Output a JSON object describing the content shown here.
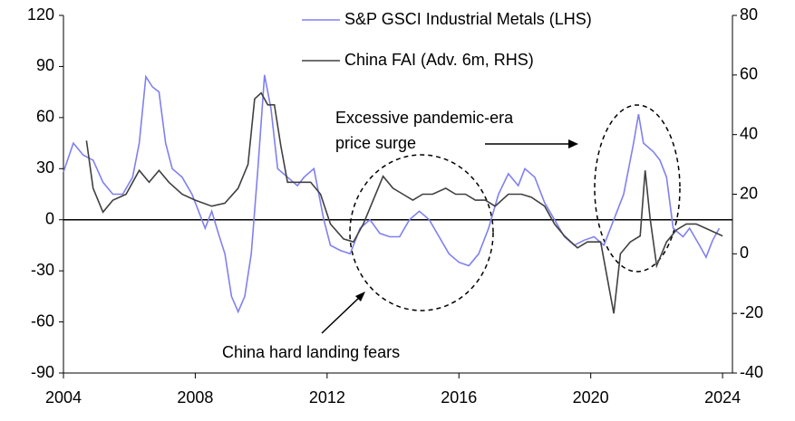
{
  "chart_data": {
    "type": "line",
    "xlim": [
      2004,
      2024.3
    ],
    "xticks": [
      2004,
      2008,
      2012,
      2016,
      2020,
      2024
    ],
    "ylim": [
      -90,
      120
    ],
    "yticks": [
      -90,
      -60,
      -30,
      0,
      30,
      60,
      90,
      120
    ],
    "y2lim": [
      -40,
      80
    ],
    "y2ticks": [
      -40,
      -20,
      0,
      20,
      40,
      60,
      80
    ],
    "zero_line": true,
    "series": [
      {
        "name": "S&P GSCI Industrial Metals (LHS)",
        "color": "#8080f0",
        "x": [
          2004.0,
          2004.3,
          2004.6,
          2004.9,
          2005.2,
          2005.5,
          2005.8,
          2006.1,
          2006.3,
          2006.5,
          2006.7,
          2006.9,
          2007.1,
          2007.3,
          2007.6,
          2007.9,
          2008.1,
          2008.3,
          2008.5,
          2008.7,
          2008.9,
          2009.1,
          2009.3,
          2009.5,
          2009.7,
          2009.9,
          2010.1,
          2010.3,
          2010.5,
          2010.8,
          2011.1,
          2011.3,
          2011.6,
          2011.9,
          2012.1,
          2012.4,
          2012.7,
          2013.0,
          2013.3,
          2013.6,
          2013.9,
          2014.2,
          2014.5,
          2014.8,
          2015.1,
          2015.4,
          2015.7,
          2016.0,
          2016.3,
          2016.6,
          2016.9,
          2017.2,
          2017.5,
          2017.8,
          2018.0,
          2018.3,
          2018.6,
          2018.9,
          2019.2,
          2019.5,
          2019.8,
          2020.1,
          2020.4,
          2020.7,
          2021.0,
          2021.3,
          2021.45,
          2021.6,
          2021.9,
          2022.1,
          2022.3,
          2022.5,
          2022.8,
          2023.0,
          2023.3,
          2023.5,
          2023.7,
          2023.9
        ],
        "values": [
          28,
          45,
          38,
          35,
          22,
          15,
          15,
          25,
          45,
          84,
          78,
          75,
          45,
          30,
          25,
          15,
          5,
          -5,
          5,
          -8,
          -20,
          -45,
          -54,
          -45,
          -20,
          30,
          85,
          65,
          30,
          25,
          20,
          25,
          30,
          0,
          -15,
          -18,
          -20,
          -5,
          0,
          -8,
          -10,
          -10,
          0,
          5,
          0,
          -10,
          -20,
          -25,
          -27,
          -20,
          -5,
          15,
          27,
          20,
          30,
          25,
          10,
          0,
          -10,
          -15,
          -12,
          -10,
          -15,
          0,
          15,
          45,
          62,
          45,
          40,
          35,
          25,
          -5,
          -10,
          -5,
          -15,
          -22,
          -12,
          -5
        ]
      },
      {
        "name": "China FAI (Adv. 6m, RHS)",
        "color": "#404040",
        "axis": "y2",
        "x": [
          2004.7,
          2004.9,
          2005.2,
          2005.5,
          2005.9,
          2006.3,
          2006.6,
          2006.9,
          2007.2,
          2007.6,
          2008.0,
          2008.5,
          2008.9,
          2009.3,
          2009.6,
          2009.8,
          2010.0,
          2010.2,
          2010.4,
          2010.6,
          2010.8,
          2011.1,
          2011.5,
          2011.8,
          2012.1,
          2012.5,
          2012.8,
          2013.1,
          2013.4,
          2013.7,
          2014.0,
          2014.3,
          2014.6,
          2014.9,
          2015.2,
          2015.6,
          2015.9,
          2016.2,
          2016.5,
          2016.8,
          2017.1,
          2017.5,
          2017.9,
          2018.2,
          2018.6,
          2018.9,
          2019.2,
          2019.6,
          2019.9,
          2020.3,
          2020.7,
          2020.9,
          2021.2,
          2021.5,
          2021.65,
          2021.8,
          2022.0,
          2022.3,
          2022.6,
          2022.9,
          2023.2,
          2023.6,
          2024.0
        ],
        "values": [
          38,
          22,
          14,
          18,
          20,
          28,
          24,
          28,
          24,
          20,
          18,
          16,
          17,
          22,
          30,
          52,
          54,
          50,
          50,
          36,
          24,
          24,
          24,
          20,
          10,
          5,
          4,
          10,
          18,
          26,
          22,
          20,
          18,
          20,
          20,
          22,
          20,
          20,
          18,
          18,
          16,
          20,
          20,
          19,
          16,
          10,
          6,
          2,
          4,
          4,
          -20,
          0,
          4,
          6,
          28,
          12,
          -4,
          4,
          8,
          10,
          10,
          8,
          6
        ]
      }
    ],
    "annotations": [
      "Excessive pandemic-era",
      "price surge",
      "China hard landing fears"
    ]
  }
}
